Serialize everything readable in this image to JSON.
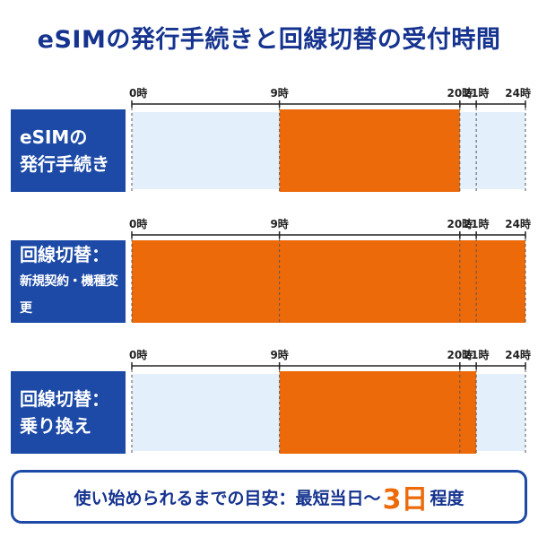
{
  "title": "eSIMの発行手続きと回線切替の受付時間",
  "footer": {
    "prefix": "使い始められるまでの目安：最短当日～",
    "highlight": "3日",
    "suffix": "程度"
  },
  "colors": {
    "bar": "#ec6a0a",
    "track": "#e3effa",
    "label_bg": "#1c4aa6",
    "grid": "#555555"
  },
  "chart_data": [
    {
      "type": "bar",
      "orientation": "horizontal-range",
      "row_label": [
        "eSIMの",
        "発行手続き"
      ],
      "ticks": [
        0,
        9,
        20,
        21,
        24
      ],
      "tick_labels": [
        "0時",
        "9時",
        "20時",
        "21時",
        "24時"
      ],
      "xlim": [
        0,
        24
      ],
      "range": [
        9,
        20
      ]
    },
    {
      "type": "bar",
      "orientation": "horizontal-range",
      "row_label": [
        "回線切替：",
        "新規契約・機種変更"
      ],
      "ticks": [
        0,
        9,
        20,
        21,
        24
      ],
      "tick_labels": [
        "0時",
        "9時",
        "20時",
        "21時",
        "24時"
      ],
      "xlim": [
        0,
        24
      ],
      "range": [
        0,
        24
      ]
    },
    {
      "type": "bar",
      "orientation": "horizontal-range",
      "row_label": [
        "回線切替：",
        "乗り換え"
      ],
      "ticks": [
        0,
        9,
        20,
        21,
        24
      ],
      "tick_labels": [
        "0時",
        "9時",
        "20時",
        "21時",
        "24時"
      ],
      "xlim": [
        0,
        24
      ],
      "range": [
        9,
        21
      ]
    }
  ]
}
